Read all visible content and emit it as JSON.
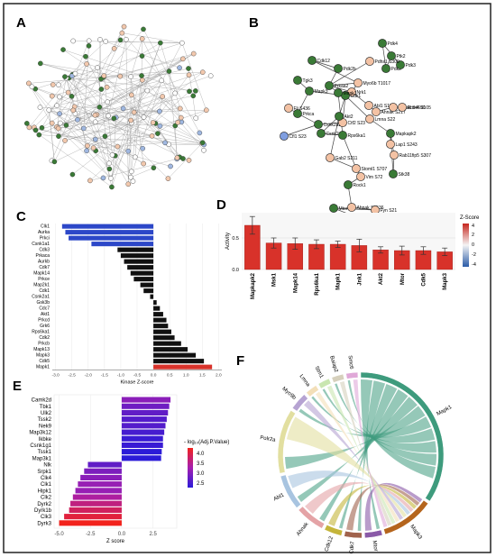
{
  "panels": {
    "A": {
      "letter": "A"
    },
    "B": {
      "letter": "B",
      "nodes": [
        {
          "label": "Pdk4",
          "color": "green"
        },
        {
          "label": "Pdk2",
          "color": "green"
        },
        {
          "label": "Pdk3",
          "color": "green"
        },
        {
          "label": "Cdk12",
          "color": "green"
        },
        {
          "label": "Pdhs1 S300",
          "color": "peach"
        },
        {
          "label": "Pdk2b",
          "color": "green"
        },
        {
          "label": "Ptk2",
          "color": "green"
        },
        {
          "label": "Prkaa2",
          "color": "green"
        },
        {
          "label": "Tgk3",
          "color": "green"
        },
        {
          "label": "Myo6b T1017",
          "color": "peach"
        },
        {
          "label": "Mapk3",
          "color": "green"
        },
        {
          "label": "Nrk1",
          "color": "peach"
        },
        {
          "label": "Abl1 S183",
          "color": "peach"
        },
        {
          "label": "Ahnak S217",
          "color": "peach"
        },
        {
          "label": "Ahnak S4690",
          "color": "peach"
        },
        {
          "label": "Rbm4 S105",
          "color": "peach"
        },
        {
          "label": "Fli S436",
          "color": "peach"
        },
        {
          "label": "Cdk1",
          "color": "green"
        },
        {
          "label": "Lmna S22",
          "color": "peach"
        },
        {
          "label": "Mapkapk2",
          "color": "green"
        },
        {
          "label": "Prkca",
          "color": "green"
        },
        {
          "label": "Csnk2a2",
          "color": "green"
        },
        {
          "label": "Ctf2 S23",
          "color": "peach"
        },
        {
          "label": "Lap1 S243",
          "color": "peach"
        },
        {
          "label": "Rab11fip5 S307",
          "color": "peach"
        },
        {
          "label": "Cfl1 S23",
          "color": "blue"
        },
        {
          "label": "Akt2",
          "color": "green"
        },
        {
          "label": "Csnk2a1",
          "color": "green"
        },
        {
          "label": "Rps6ka1",
          "color": "green"
        },
        {
          "label": "Mapk1",
          "color": "green"
        },
        {
          "label": "Stk38",
          "color": "green"
        },
        {
          "label": "Gab2 S211",
          "color": "peach"
        },
        {
          "label": "Stoml1 S707",
          "color": "peach"
        },
        {
          "label": "Vim S72",
          "color": "peach"
        },
        {
          "label": "Rock1",
          "color": "green"
        },
        {
          "label": "Ahnak S5536",
          "color": "peach"
        },
        {
          "label": "Fyn S21",
          "color": "peach"
        },
        {
          "label": "Mtor",
          "color": "green"
        },
        {
          "label": "Prkacb",
          "color": "green"
        },
        {
          "label": "Cdk18 S109",
          "color": "peach"
        }
      ]
    },
    "C": {
      "letter": "C"
    },
    "D": {
      "letter": "D",
      "legend_title": "Z-Score",
      "legend_ticks": [
        "4",
        "2",
        "0",
        "-2",
        "-4"
      ]
    },
    "E": {
      "letter": "E",
      "legend_title": "- log₁₀(Adj.P.Value)",
      "legend_ticks": [
        "4.0",
        "3.5",
        "3.0",
        "2.5"
      ]
    },
    "F": {
      "letter": "F"
    }
  },
  "chart_data": [
    {
      "panel": "C",
      "type": "bar",
      "orientation": "horizontal",
      "categories": [
        "Clk1",
        "Aurka",
        "Prkci",
        "Csnk1a1",
        "Cdk3",
        "Prkaca",
        "Aurkb",
        "Cdk7",
        "Mapk14",
        "Prkce",
        "Map2k1",
        "Cdk1",
        "Csnk2a1",
        "Gsk3b",
        "Cdc7",
        "Akt1",
        "Prkcd",
        "Grk6",
        "Rps6ka1",
        "Cdk2",
        "Prkcb",
        "Mapk13",
        "Mapk3",
        "Cdk5",
        "Mapk1"
      ],
      "values": [
        -2.8,
        -2.7,
        -2.6,
        -1.9,
        -1.1,
        -1.0,
        -0.9,
        -0.8,
        -0.7,
        -0.6,
        -0.4,
        -0.3,
        -0.1,
        0.1,
        0.2,
        0.3,
        0.4,
        0.45,
        0.55,
        0.65,
        0.85,
        1.05,
        1.3,
        1.55,
        1.8
      ],
      "bar_colors": [
        "#2c47c8",
        "#2c47c8",
        "#2c47c8",
        "#2c47c8",
        "#111111",
        "#111111",
        "#111111",
        "#111111",
        "#111111",
        "#111111",
        "#111111",
        "#111111",
        "#111111",
        "#111111",
        "#111111",
        "#111111",
        "#111111",
        "#111111",
        "#111111",
        "#111111",
        "#111111",
        "#111111",
        "#111111",
        "#111111",
        "#d8322a"
      ],
      "xlabel": "Kinase Z-score",
      "xticks": [
        -3.0,
        -2.5,
        -2.0,
        -1.5,
        -1.0,
        -0.5,
        0.0,
        0.5,
        1.0,
        1.5,
        2.0
      ],
      "xlim": [
        -3.1,
        2.1
      ]
    },
    {
      "panel": "D",
      "type": "bar",
      "categories": [
        "Mapkapk2",
        "Msk1",
        "Mapk14",
        "Rps6ka1",
        "Mapk1",
        "Jnk1",
        "Akt2",
        "Mtor",
        "Cdk5",
        "Mapk3"
      ],
      "values": [
        0.7,
        0.42,
        0.41,
        0.4,
        0.4,
        0.38,
        0.31,
        0.3,
        0.3,
        0.28
      ],
      "errors": [
        0.14,
        0.08,
        0.09,
        0.07,
        0.05,
        0.1,
        0.05,
        0.07,
        0.06,
        0.06
      ],
      "ylabel": "Activity",
      "yticks": [
        0.0,
        0.5
      ],
      "ylim": [
        0,
        0.9
      ],
      "bar_color": "#d8322a"
    },
    {
      "panel": "E",
      "type": "bar",
      "orientation": "horizontal",
      "categories": [
        "Camk2d",
        "Tbk1",
        "Ulk2",
        "Tssk2",
        "Nek9",
        "Map3k12",
        "Ikbke",
        "Csnk1g1",
        "Tssk1",
        "Map3k1",
        "Nlk",
        "Srpk1",
        "Clk4",
        "Clk1",
        "Hipk1",
        "Clk2",
        "Dyrk2",
        "Dyrk1b",
        "Clk3",
        "Dyrk3"
      ],
      "values": [
        3.9,
        3.8,
        3.7,
        3.6,
        3.5,
        3.4,
        3.3,
        3.3,
        3.2,
        3.15,
        -2.7,
        -3.0,
        -3.3,
        -3.5,
        -3.7,
        -3.9,
        -4.1,
        -4.2,
        -4.6,
        -5.0
      ],
      "neg_log10_adj_p": [
        3.2,
        3.0,
        2.9,
        2.8,
        2.8,
        2.7,
        2.6,
        2.6,
        2.5,
        2.5,
        2.9,
        3.1,
        3.2,
        3.3,
        3.3,
        3.5,
        3.7,
        3.9,
        4.1,
        4.3
      ],
      "xlabel": "Z score",
      "xticks": [
        -5.0,
        -2.5,
        0.0,
        2.5
      ],
      "xlim": [
        -5.4,
        4.4
      ]
    },
    {
      "panel": "F",
      "type": "chord",
      "sectors": [
        {
          "name": "Mapk1",
          "color": "#3e9b7d",
          "value": 30
        },
        {
          "name": "Mapk3",
          "color": "#b5651d",
          "value": 9
        },
        {
          "name": "Mtor",
          "color": "#8a5aa8",
          "value": 3
        },
        {
          "name": "Cdk7",
          "color": "#a0634d",
          "value": 3
        },
        {
          "name": "Cdk12",
          "color": "#c5b53a",
          "value": 3
        },
        {
          "name": "Ahnak",
          "color": "#e4a3a6",
          "value": 5
        },
        {
          "name": "Abl1",
          "color": "#a8c4e0",
          "value": 6
        },
        {
          "name": "Polr2a",
          "color": "#e2dfa0",
          "value": 11
        },
        {
          "name": "Myo9b",
          "color": "#b6a3d2",
          "value": 3
        },
        {
          "name": "Lmna",
          "color": "#f3dfb8",
          "value": 2
        },
        {
          "name": "Stm1",
          "color": "#c9e6b0",
          "value": 2
        },
        {
          "name": "Baiap2",
          "color": "#d6d0bc",
          "value": 2
        },
        {
          "name": "Smc6",
          "color": "#e0a8d8",
          "value": 2
        }
      ]
    }
  ]
}
